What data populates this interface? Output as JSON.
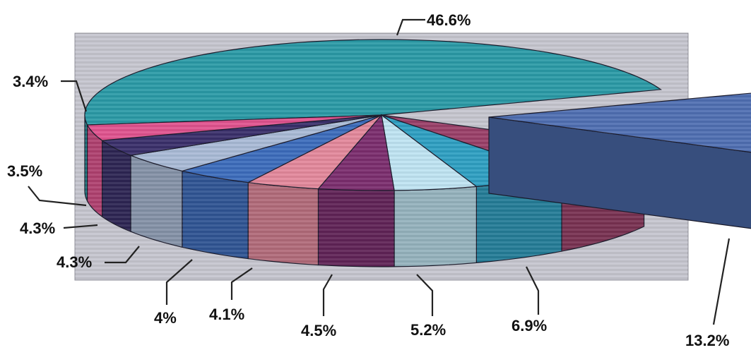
{
  "chart_data": {
    "type": "pie",
    "style": "3d-exploded",
    "grid": false,
    "legend": "none",
    "slices": [
      {
        "label": "46.6%",
        "value": 46.6,
        "color": "#2a9aa6"
      },
      {
        "label": "13.2%",
        "value": 13.2,
        "color": "#4f6fb2",
        "exploded": true
      },
      {
        "label": "6.9%",
        "value": 6.9,
        "color": "#9a3f68"
      },
      {
        "label": "5.2%",
        "value": 5.2,
        "color": "#2e9fc2"
      },
      {
        "label": "4.5%",
        "value": 4.5,
        "color": "#bfe4f2"
      },
      {
        "label": "4.1%",
        "value": 4.1,
        "color": "#7b2d6e"
      },
      {
        "label": "4%",
        "value": 4.0,
        "color": "#e3889b"
      },
      {
        "label": "4.3%",
        "value": 4.3,
        "color": "#3c6cbc"
      },
      {
        "label": "4.3%",
        "value": 4.3,
        "color": "#a9bad6"
      },
      {
        "label": "3.5%",
        "value": 3.5,
        "color": "#3a2f6a"
      },
      {
        "label": "3.4%",
        "value": 3.4,
        "color": "#e0528e"
      }
    ]
  }
}
